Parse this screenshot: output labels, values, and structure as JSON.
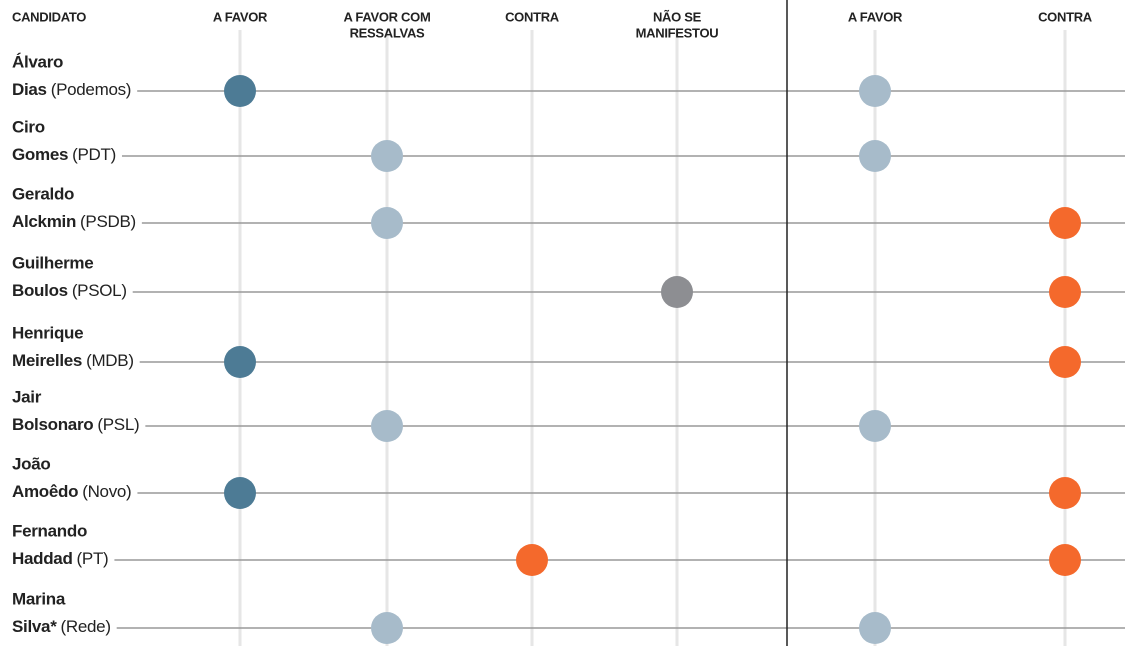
{
  "header": {
    "candidate": "CANDIDATO"
  },
  "groups": [
    {
      "columns": [
        {
          "lines": [
            "A FAVOR"
          ],
          "color": "#4d7b95"
        },
        {
          "lines": [
            "A FAVOR COM",
            "RESSALVAS"
          ],
          "color": "#a7bbca"
        },
        {
          "lines": [
            "CONTRA"
          ],
          "color": "#f4692c"
        },
        {
          "lines": [
            "NÃO SE",
            "MANIFESTOU"
          ],
          "color": "#8d8e92"
        }
      ]
    },
    {
      "columns": [
        {
          "lines": [
            "A FAVOR"
          ],
          "color": "#a7bbca"
        },
        {
          "lines": [
            "CONTRA"
          ],
          "color": "#f4692c"
        }
      ]
    }
  ],
  "rows": [
    {
      "first": "Álvaro",
      "last": "Dias",
      "party": "(Podemos)",
      "positions": [
        0,
        0
      ]
    },
    {
      "first": "Ciro",
      "last": "Gomes",
      "party": "(PDT)",
      "positions": [
        1,
        0
      ]
    },
    {
      "first": "Geraldo",
      "last": "Alckmin",
      "party": "(PSDB)",
      "positions": [
        1,
        1
      ]
    },
    {
      "first": "Guilherme",
      "last": "Boulos",
      "party": "(PSOL)",
      "positions": [
        3,
        1
      ]
    },
    {
      "first": "Henrique",
      "last": "Meirelles",
      "party": "(MDB)",
      "positions": [
        0,
        1
      ]
    },
    {
      "first": "Jair",
      "last": "Bolsonaro",
      "party": "(PSL)",
      "positions": [
        1,
        0
      ]
    },
    {
      "first": "João",
      "last": "Amoêdo",
      "party": "(Novo)",
      "positions": [
        0,
        1
      ]
    },
    {
      "first": "Fernando",
      "last": "Haddad",
      "party": "(PT)",
      "positions": [
        2,
        1
      ]
    },
    {
      "first": "Marina",
      "last": "Silva*",
      "party": "(Rede)",
      "positions": [
        1,
        0
      ]
    }
  ]
}
